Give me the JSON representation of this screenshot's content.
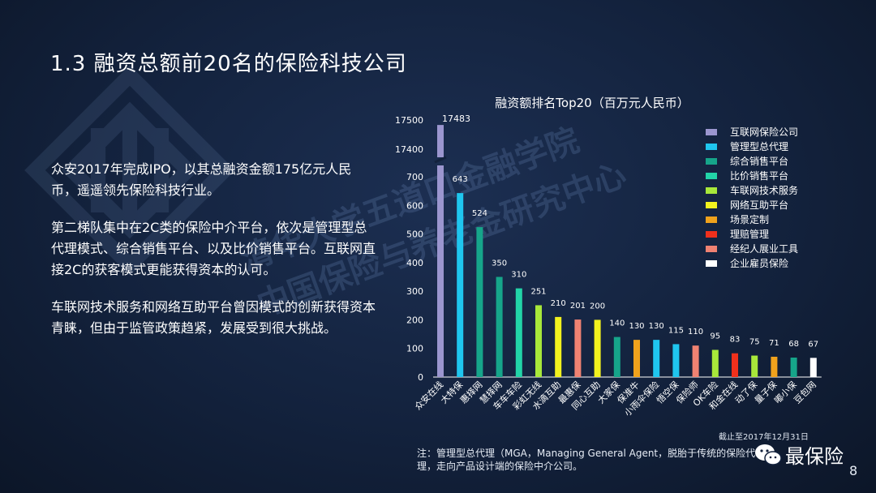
{
  "slide": {
    "title": "1.3 融资总额前20名的保险科技公司",
    "paragraphs": [
      "众安2017年完成IPO，以其总融资金额175亿元人民币，遥遥领先保险科技行业。",
      "第二梯队集中在2C类的保险中介平台，依次是管理型总代理模式、综合销售平台、以及比价销售平台。互联网直接2C的获客模式更能获得资本的认可。",
      "车联网技术服务和网络互助平台曾因模式的创新获得资本青睐，但由于监管政策趋紧，发展受到很大挑战。"
    ],
    "cutoff": "截止至2017年12月31日",
    "note": "注：管理型总代理（MGA，Managing General Agent，脱胎于传统的保险代理，走向产品设计端的保险中介公司。",
    "brand": "最保险",
    "page_number": "8",
    "watermark_lines": [
      "清华大学五道口金融学院",
      "中国保险与养老金研究中心"
    ]
  },
  "chart_data": {
    "type": "bar",
    "title": "融资额排名Top20（百万元人民币）",
    "categories": [
      "众安在线",
      "大特保",
      "惠择网",
      "慧择网",
      "车车车险",
      "彩虹无线",
      "水滴互助",
      "最惠保",
      "同心互助",
      "大家保",
      "保准牛",
      "小雨伞保险",
      "悟空保",
      "保险师",
      "OK车险",
      "和金在线",
      "动了保",
      "量子保",
      "嘟小保",
      "豆包网"
    ],
    "values": [
      17483,
      643,
      524,
      350,
      310,
      251,
      210,
      201,
      200,
      140,
      130,
      130,
      115,
      110,
      95,
      83,
      75,
      71,
      68,
      67
    ],
    "value_labels": [
      "17483",
      "643",
      "524",
      "350",
      "310",
      "251",
      "210",
      "201",
      "200",
      "140",
      "130",
      "130",
      "115",
      "110",
      "95",
      "83",
      "75",
      "71",
      "68",
      "67"
    ],
    "bar_series": [
      0,
      1,
      2,
      2,
      3,
      4,
      5,
      8,
      5,
      2,
      6,
      1,
      1,
      8,
      4,
      7,
      4,
      6,
      2,
      9
    ],
    "y_ticks_lower": [
      "0",
      "100",
      "200",
      "300",
      "400",
      "500",
      "600",
      "700"
    ],
    "y_ticks_upper": [
      "17400",
      "17500"
    ],
    "ylim_lower": [
      0,
      700
    ],
    "ylim_upper": [
      17400,
      17500
    ],
    "axis_break": true,
    "legend_position": "right",
    "legend": [
      {
        "name": "互联网保险公司",
        "color": "#9b96cf"
      },
      {
        "name": "管理型总代理",
        "color": "#1fc6ef"
      },
      {
        "name": "综合销售平台",
        "color": "#16a58a"
      },
      {
        "name": "比价销售平台",
        "color": "#22d4a8"
      },
      {
        "name": "车联网技术服务",
        "color": "#a8e83a"
      },
      {
        "name": "网络互助平台",
        "color": "#f2f21e"
      },
      {
        "name": "场景定制",
        "color": "#f0a21c"
      },
      {
        "name": "理赔管理",
        "color": "#f0301c"
      },
      {
        "name": "经纪人展业工具",
        "color": "#f08272"
      },
      {
        "name": "企业雇员保险",
        "color": "#ffffff"
      }
    ]
  }
}
